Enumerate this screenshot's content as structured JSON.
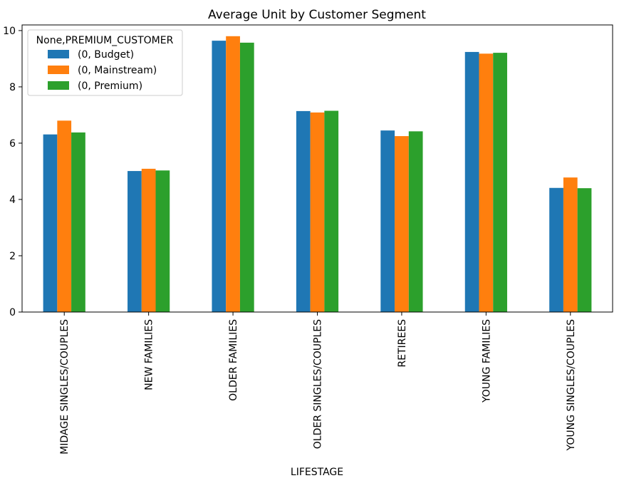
{
  "chart_data": {
    "type": "bar",
    "title": "Average Unit by Customer Segment",
    "xlabel": "LIFESTAGE",
    "ylabel": "",
    "ylim": [
      0,
      10.2
    ],
    "yticks": [
      0,
      2,
      4,
      6,
      8,
      10
    ],
    "grid": false,
    "legend": {
      "title": "None,PREMIUM_CUSTOMER",
      "placement": "top-left"
    },
    "categories": [
      "MIDAGE SINGLES/COUPLES",
      "NEW FAMILIES",
      "OLDER FAMILIES",
      "OLDER SINGLES/COUPLES",
      "RETIREES",
      "YOUNG FAMILIES",
      "YOUNG SINGLES/COUPLES"
    ],
    "series": [
      {
        "name": "(0, Budget)",
        "color": "#1f77b4",
        "values": [
          6.31,
          5.01,
          9.64,
          7.14,
          6.45,
          9.24,
          4.41
        ]
      },
      {
        "name": "(0, Mainstream)",
        "color": "#ff7f0e",
        "values": [
          6.8,
          5.09,
          9.8,
          7.09,
          6.25,
          9.18,
          4.78
        ]
      },
      {
        "name": "(0, Premium)",
        "color": "#2ca02c",
        "values": [
          6.38,
          5.03,
          9.57,
          7.15,
          6.42,
          9.21,
          4.4
        ]
      }
    ]
  }
}
